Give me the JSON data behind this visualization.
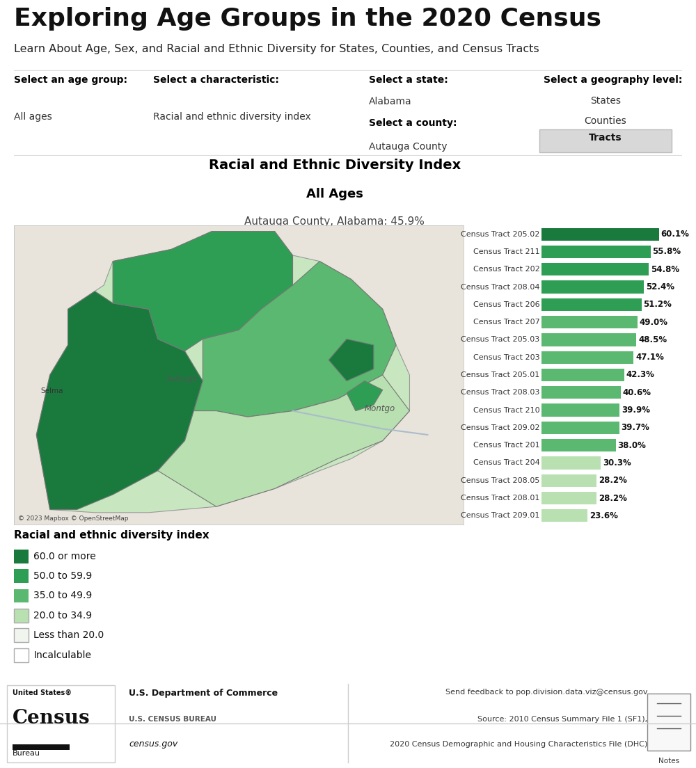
{
  "title": "Exploring Age Groups in the 2020 Census",
  "subtitle": "Learn About Age, Sex, and Racial and Ethnic Diversity for States, Counties, and Census Tracts",
  "select_age_group_label": "Select an age group:",
  "select_age_group_value": "All ages",
  "select_char_label": "Select a characteristic:",
  "select_char_value": "Racial and ethnic diversity index",
  "select_state_label": "Select a state:",
  "select_state_value": "Alabama",
  "select_county_label": "Select a county:",
  "select_county_value": "Autauga County",
  "select_geo_label": "Select a geography level:",
  "geo_options": [
    "States",
    "Counties",
    "Tracts"
  ],
  "geo_selected": "Tracts",
  "chart_title_line1": "Racial and Ethnic Diversity Index",
  "chart_title_line2": "All Ages",
  "chart_subtitle": "Autauga County, Alabama: 45.9%",
  "bar_labels": [
    "Census Tract 205.02",
    "Census Tract 211",
    "Census Tract 202",
    "Census Tract 208.04",
    "Census Tract 206",
    "Census Tract 207",
    "Census Tract 205.03",
    "Census Tract 203",
    "Census Tract 205.01",
    "Census Tract 208.03",
    "Census Tract 210",
    "Census Tract 209.02",
    "Census Tract 201",
    "Census Tract 204",
    "Census Tract 208.05",
    "Census Tract 208.01",
    "Census Tract 209.01"
  ],
  "bar_values": [
    60.1,
    55.8,
    54.8,
    52.4,
    51.2,
    49.0,
    48.5,
    47.1,
    42.3,
    40.6,
    39.9,
    39.7,
    38.0,
    30.3,
    28.2,
    28.2,
    23.6
  ],
  "bar_colors": [
    "#1a7a3e",
    "#2e9e54",
    "#2e9e54",
    "#2e9e54",
    "#2e9e54",
    "#5ab870",
    "#5ab870",
    "#5ab870",
    "#5ab870",
    "#5ab870",
    "#5ab870",
    "#5ab870",
    "#5ab870",
    "#b8e0b0",
    "#b8e0b0",
    "#b8e0b0",
    "#b8e0b0"
  ],
  "legend_title": "Racial and ethnic diversity index",
  "legend_items": [
    {
      "label": "60.0 or more",
      "color": "#1a7a3e",
      "edgecolor": "none"
    },
    {
      "label": "50.0 to 59.9",
      "color": "#2e9e54",
      "edgecolor": "none"
    },
    {
      "label": "35.0 to 49.9",
      "color": "#5ab870",
      "edgecolor": "none"
    },
    {
      "label": "20.0 to 34.9",
      "color": "#b8e0b0",
      "edgecolor": "#aaaaaa"
    },
    {
      "label": "Less than 20.0",
      "color": "#f0f5ee",
      "edgecolor": "#aaaaaa"
    },
    {
      "label": "Incalculable",
      "color": "#ffffff",
      "edgecolor": "#aaaaaa"
    }
  ],
  "bg_color": "#ffffff",
  "footer_feedback": "Send feedback to pop.division.data.viz@census.gov",
  "footer_source1": "Source: 2010 Census Summary File 1 (SF1),",
  "footer_source2": "2020 Census Demographic and Housing Characteristics File (DHC)",
  "dept_text1": "U.S. Department of Commerce",
  "dept_text2": "U.S. CENSUS BUREAU",
  "dept_text3": "census.gov",
  "map_credit": "© 2023 Mapbox © OpenStreetMap"
}
